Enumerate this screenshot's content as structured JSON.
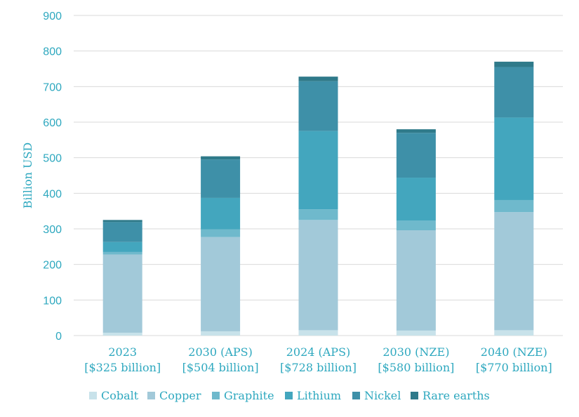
{
  "chart_data": {
    "type": "bar",
    "stacked": true,
    "categories": [
      "2023\n[$325 billion]",
      "2030 (APS)\n[$504 billion]",
      "2024 (APS)\n[$728 billion]",
      "2030 (NZE)\n[$580 billion]",
      "2040 (NZE)\n[$770 billion]"
    ],
    "series": [
      {
        "name": "Cobalt",
        "color": "#c8e2ea",
        "values": [
          8,
          12,
          15,
          14,
          15
        ]
      },
      {
        "name": "Copper",
        "color": "#a2c9d9",
        "values": [
          220,
          265,
          310,
          282,
          332
        ]
      },
      {
        "name": "Graphite",
        "color": "#6fb9cc",
        "values": [
          7,
          22,
          30,
          27,
          34
        ]
      },
      {
        "name": "Lithium",
        "color": "#43a6be",
        "values": [
          28,
          88,
          220,
          121,
          232
        ]
      },
      {
        "name": "Nickel",
        "color": "#3e90a8",
        "values": [
          56,
          108,
          140,
          126,
          142
        ]
      },
      {
        "name": "Rare earths",
        "color": "#2f7a8a",
        "values": [
          6,
          9,
          13,
          10,
          15
        ]
      }
    ],
    "title": "",
    "xlabel": "",
    "ylabel": "Billion USD",
    "ylim": [
      0,
      900
    ],
    "yticks": [
      0,
      100,
      200,
      300,
      400,
      500,
      600,
      700,
      800,
      900
    ],
    "grid": true,
    "legend": "bottom"
  }
}
